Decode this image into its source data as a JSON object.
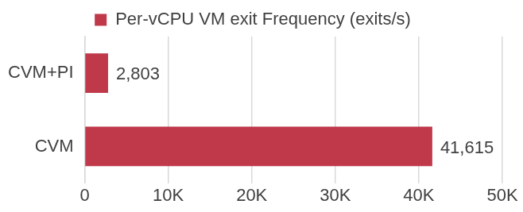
{
  "chart_data": {
    "type": "bar",
    "orientation": "horizontal",
    "categories": [
      "CVM+PI",
      "CVM"
    ],
    "series": [
      {
        "name": "Per-vCPU VM exit Frequency (exits/s)",
        "color": "#c0394b",
        "values": [
          2803,
          41615
        ],
        "value_labels": [
          "2,803",
          "41,615"
        ]
      }
    ],
    "xlim": [
      0,
      50000
    ],
    "xticks": [
      0,
      {
        "value": 10000,
        "label": "10K"
      },
      {
        "value": 20000,
        "label": "20K"
      },
      {
        "value": 30000,
        "label": "30K"
      },
      {
        "value": 40000,
        "label": "40K"
      },
      {
        "value": 50000,
        "label": "50K"
      }
    ],
    "grid": true,
    "legend": "top",
    "data_labels": true
  }
}
